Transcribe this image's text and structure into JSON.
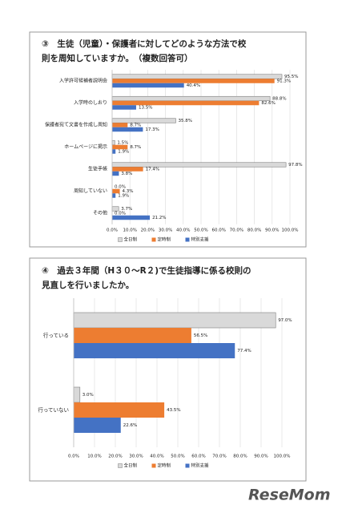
{
  "chart_data": [
    {
      "type": "bar",
      "orientation": "horizontal",
      "title": [
        "③　生徒（児童）・保護者に対してどのような方法で校",
        "則を周知していますか。　（複数回答可）"
      ],
      "categories": [
        "入学許可候補者説明会",
        "入学時のしおり",
        "保護者宛て文書を作成し周知",
        "ホームページに掲示",
        "生徒手帳",
        "周知していない",
        "その他"
      ],
      "series": [
        {
          "name": "全日制",
          "color": "#d9d9d9",
          "values": [
            95.5,
            88.8,
            35.8,
            1.5,
            97.8,
            0.0,
            3.7
          ],
          "value_labels": [
            "95.5%",
            "88.8%",
            "35.8%",
            "1.5%",
            "97.8%",
            "0.0%",
            "3.7%"
          ]
        },
        {
          "name": "定時制",
          "color": "#ed7d31",
          "values": [
            91.3,
            82.6,
            8.7,
            8.7,
            17.4,
            4.3,
            0.0
          ],
          "value_labels": [
            "91.3%",
            "82.6%",
            "8.7%",
            "8.7%",
            "17.4%",
            "4.3%",
            "0.0%"
          ]
        },
        {
          "name": "特別支援",
          "color": "#4472c4",
          "values": [
            40.4,
            13.5,
            17.3,
            1.9,
            3.8,
            1.9,
            21.2
          ],
          "value_labels": [
            "40.4%",
            "13.5%",
            "17.3%",
            "1.9%",
            "3.8%",
            "1.9%",
            "21.2%"
          ]
        }
      ],
      "xlim": [
        0,
        100
      ],
      "xticks": [
        {
          "value": 0,
          "label": "0.0%"
        },
        {
          "value": 10,
          "label": "10.0%"
        },
        {
          "value": 20,
          "label": "20.0%"
        },
        {
          "value": 30,
          "label": "30.0%"
        },
        {
          "value": 40,
          "label": "40.0%"
        },
        {
          "value": 50,
          "label": "50.0%"
        },
        {
          "value": 60,
          "label": "60.0%"
        },
        {
          "value": 70,
          "label": "70.0%"
        },
        {
          "value": 80,
          "label": "80.0%"
        },
        {
          "value": 90,
          "label": "90.0%"
        },
        {
          "value": 100,
          "label": "100.0%"
        }
      ],
      "grid": true,
      "legend": "bottom"
    },
    {
      "type": "bar",
      "orientation": "horizontal",
      "title": [
        "④　過去３年間（H３０～R２)で生徒指導に係る校則の",
        "見直しを行いましたか。"
      ],
      "categories": [
        "行っている",
        "行っていない"
      ],
      "series": [
        {
          "name": "全日制",
          "color": "#d9d9d9",
          "values": [
            97.0,
            3.0
          ],
          "value_labels": [
            "97.0%",
            "3.0%"
          ]
        },
        {
          "name": "定時制",
          "color": "#ed7d31",
          "values": [
            56.5,
            43.5
          ],
          "value_labels": [
            "56.5%",
            "43.5%"
          ]
        },
        {
          "name": "特別支援",
          "color": "#4472c4",
          "values": [
            77.4,
            22.6
          ],
          "value_labels": [
            "77.4%",
            "22.6%"
          ]
        }
      ],
      "xlim": [
        0,
        100
      ],
      "xticks": [
        {
          "value": 0,
          "label": "0.0%"
        },
        {
          "value": 10,
          "label": "10.0%"
        },
        {
          "value": 20,
          "label": "20.0%"
        },
        {
          "value": 30,
          "label": "30.0%"
        },
        {
          "value": 40,
          "label": "40.0%"
        },
        {
          "value": 50,
          "label": "50.0%"
        },
        {
          "value": 60,
          "label": "60.0%"
        },
        {
          "value": 70,
          "label": "70.0%"
        },
        {
          "value": 80,
          "label": "80.0%"
        },
        {
          "value": 90,
          "label": "90.0%"
        },
        {
          "value": 100,
          "label": "100.0%"
        }
      ],
      "grid": true,
      "legend": "bottom"
    }
  ],
  "logo": "ReseMom"
}
